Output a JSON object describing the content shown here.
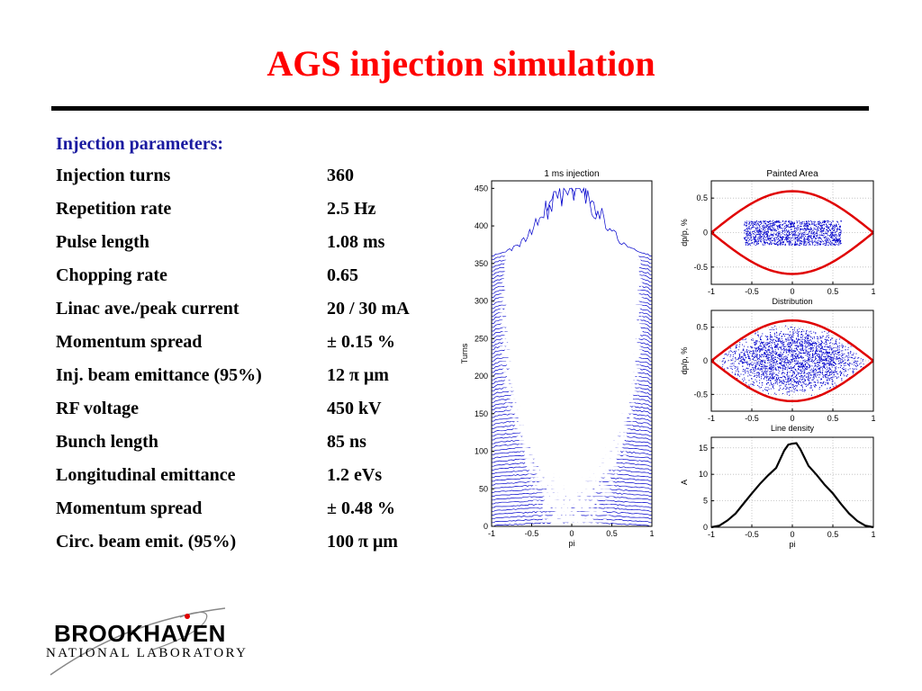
{
  "slide": {
    "title": "AGS injection simulation",
    "title_color": "#ff0000"
  },
  "params": {
    "header": "Injection parameters:",
    "header_color": "#1a1aa0",
    "rows": [
      {
        "name": "Injection turns",
        "value": "360"
      },
      {
        "name": "Repetition rate",
        "value": "2.5 Hz"
      },
      {
        "name": "Pulse length",
        "value": "1.08 ms"
      },
      {
        "name": "Chopping rate",
        "value": "0.65"
      },
      {
        "name": "Linac ave./peak current",
        "value": "20 / 30 mA"
      },
      {
        "name": "Momentum spread",
        "value": "± 0.15 %"
      },
      {
        "name": "Inj. beam emittance (95%)",
        "value": "12  π μm"
      },
      {
        "name": "RF voltage",
        "value": "450 kV"
      },
      {
        "name": "Bunch length",
        "value": "85 ns"
      },
      {
        "name": "Longitudinal emittance",
        "value": "1.2 eVs"
      },
      {
        "name": "Momentum spread",
        "value": "± 0.48 %"
      },
      {
        "name": "Circ. beam emit. (95%)",
        "value": "100  π μm"
      }
    ]
  },
  "logo": {
    "name": "BROOKHAVEN",
    "subtitle": "NATIONAL LABORATORY",
    "icon": "atom-orbit-logo"
  },
  "chart_data": [
    {
      "type": "line",
      "title": "1 ms injection",
      "xlabel": "pi",
      "ylabel": "Turns",
      "xlim": [
        -1,
        1
      ],
      "ylim": [
        0,
        460
      ],
      "xticks": [
        -1,
        -0.5,
        0,
        0.5,
        1
      ],
      "yticks": [
        0,
        50,
        100,
        150,
        200,
        250,
        300,
        350,
        400,
        450
      ],
      "trace_every_turns": 5,
      "trace_spacing_turns": 5,
      "filled_turns": 360,
      "peak_turn": 450,
      "line_color": "#0000cc"
    },
    {
      "type": "scatter",
      "title": "Painted Area",
      "xlabel": "Distribution",
      "ylabel": "dp/p, %",
      "xlim": [
        -1,
        1
      ],
      "ylim": [
        -0.75,
        0.75
      ],
      "xticks": [
        -1,
        -0.5,
        0,
        0.5,
        1
      ],
      "yticks": [
        -0.5,
        0,
        0.5
      ],
      "separatrix_amplitude": 0.6,
      "points_region": {
        "x": [
          -0.6,
          0.6
        ],
        "y": [
          -0.18,
          0.18
        ],
        "shape": "rectangle"
      },
      "grid": true,
      "point_color": "#0000cc",
      "separatrix_color": "#e00000"
    },
    {
      "type": "scatter",
      "title": "",
      "xlabel": "Line density",
      "ylabel": "dp/p, %",
      "xlim": [
        -1,
        1
      ],
      "ylim": [
        -0.75,
        0.75
      ],
      "xticks": [
        -1,
        -0.5,
        0,
        0.5,
        1
      ],
      "yticks": [
        -0.5,
        0,
        0.5
      ],
      "separatrix_amplitude": 0.6,
      "points_region": {
        "x": [
          -0.95,
          0.95
        ],
        "y": [
          -0.55,
          0.55
        ],
        "shape": "ellipse"
      },
      "grid": true,
      "point_color": "#0000cc",
      "separatrix_color": "#e00000"
    },
    {
      "type": "line",
      "title": "",
      "xlabel": "pi",
      "ylabel": "A",
      "xlim": [
        -1,
        1
      ],
      "ylim": [
        0,
        17
      ],
      "xticks": [
        -1,
        -0.5,
        0,
        0.5,
        1
      ],
      "yticks": [
        0,
        5,
        10,
        15
      ],
      "grid": true,
      "line_color": "#000000",
      "series": [
        {
          "x": [
            -1.0,
            -0.9,
            -0.8,
            -0.7,
            -0.6,
            -0.5,
            -0.4,
            -0.3,
            -0.2,
            -0.1,
            -0.05,
            0.0,
            0.05,
            0.1,
            0.2,
            0.3,
            0.4,
            0.5,
            0.6,
            0.7,
            0.8,
            0.9,
            1.0
          ],
          "y": [
            0,
            0.3,
            1.3,
            2.6,
            4.5,
            6.4,
            8.2,
            9.8,
            11.2,
            14.5,
            15.6,
            15.8,
            15.9,
            14.7,
            11.6,
            9.9,
            8.0,
            6.4,
            4.4,
            2.6,
            1.2,
            0.3,
            0
          ]
        }
      ]
    }
  ]
}
